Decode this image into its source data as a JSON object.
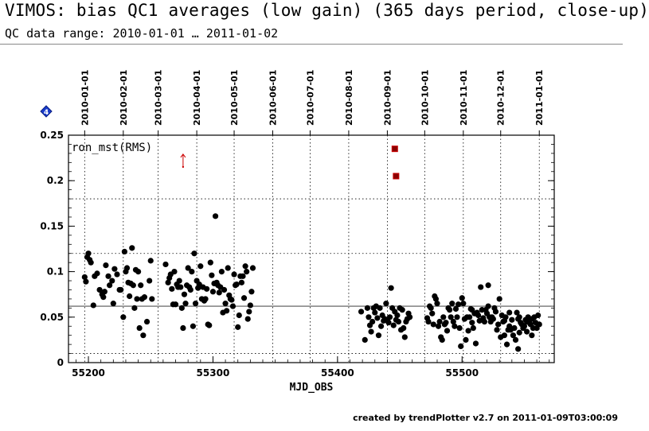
{
  "header": {
    "title": "VIMOS: bias QC1 averages (low gain) (365 days period, close-up)",
    "subtitle": "QC data range: 2010-01-01 … 2011-01-02",
    "footer": "created by trendPlotter v2.7 on 2011-01-09T03:00:09"
  },
  "badge": {
    "icon": "diamond-icon",
    "text": "4",
    "color": "#1a3ccc"
  },
  "colors": {
    "points": "#000000",
    "outlier": "#8b0000",
    "outlier_edge": "#cc0000",
    "arrow": "#cc0000",
    "grid": "#000000"
  },
  "chart_data": {
    "type": "scatter",
    "xlabel": "MJD_OBS",
    "ylabel": "",
    "panel_label": "ron_mst(RMS)",
    "xlim": [
      55184,
      55574
    ],
    "ylim": [
      0,
      0.25
    ],
    "x_ticks": [
      55200,
      55300,
      55400,
      55500
    ],
    "x_tick_labels": [
      "55200",
      "55300",
      "55400",
      "55500"
    ],
    "y_ticks": [
      0,
      0.05,
      0.1,
      0.15,
      0.2,
      0.25
    ],
    "y_tick_labels": [
      "0",
      "0.05",
      "0.1",
      "0.15",
      "0.2",
      "0.25"
    ],
    "horizontal_grid": [
      0.01,
      0.062,
      0.12,
      0.18
    ],
    "reference_line": 0.062,
    "date_ticks": [
      {
        "mjd": 55197,
        "label": "2010-01-01"
      },
      {
        "mjd": 55228,
        "label": "2010-02-01"
      },
      {
        "mjd": 55256,
        "label": "2010-03-01"
      },
      {
        "mjd": 55287,
        "label": "2010-04-01"
      },
      {
        "mjd": 55317,
        "label": "2010-05-01"
      },
      {
        "mjd": 55348,
        "label": "2010-06-01"
      },
      {
        "mjd": 55378,
        "label": "2010-07-01"
      },
      {
        "mjd": 55409,
        "label": "2010-08-01"
      },
      {
        "mjd": 55440,
        "label": "2010-09-01"
      },
      {
        "mjd": 55470,
        "label": "2010-10-01"
      },
      {
        "mjd": 55501,
        "label": "2010-11-01"
      },
      {
        "mjd": 55531,
        "label": "2010-12-01"
      },
      {
        "mjd": 55562,
        "label": "2011-01-01"
      }
    ],
    "outliers": [
      {
        "x": 55446,
        "y": 0.235
      },
      {
        "x": 55447,
        "y": 0.205
      }
    ],
    "upper_arrow": {
      "x": 55276,
      "y": 0.223
    },
    "series": [
      {
        "points": [
          [
            55197,
            0.094
          ],
          [
            55198,
            0.089
          ],
          [
            55199,
            0.116
          ],
          [
            55200,
            0.12
          ],
          [
            55201,
            0.113
          ],
          [
            55202,
            0.11
          ],
          [
            55204,
            0.063
          ],
          [
            55205,
            0.095
          ],
          [
            55207,
            0.098
          ],
          [
            55209,
            0.08
          ],
          [
            55211,
            0.075
          ],
          [
            55212,
            0.072
          ],
          [
            55213,
            0.078
          ],
          [
            55214,
            0.107
          ],
          [
            55216,
            0.095
          ],
          [
            55217,
            0.085
          ],
          [
            55219,
            0.09
          ],
          [
            55220,
            0.065
          ],
          [
            55221,
            0.103
          ],
          [
            55223,
            0.097
          ],
          [
            55225,
            0.08
          ],
          [
            55226,
            0.08
          ],
          [
            55228,
            0.05
          ],
          [
            55229,
            0.122
          ],
          [
            55230,
            0.1
          ],
          [
            55231,
            0.104
          ],
          [
            55232,
            0.088
          ],
          [
            55233,
            0.073
          ],
          [
            55234,
            0.087
          ],
          [
            55235,
            0.126
          ],
          [
            55236,
            0.085
          ],
          [
            55237,
            0.06
          ],
          [
            55238,
            0.102
          ],
          [
            55239,
            0.07
          ],
          [
            55240,
            0.1
          ],
          [
            55241,
            0.038
          ],
          [
            55242,
            0.085
          ],
          [
            55243,
            0.07
          ],
          [
            55244,
            0.03
          ],
          [
            55245,
            0.072
          ],
          [
            55247,
            0.045
          ],
          [
            55249,
            0.09
          ],
          [
            55250,
            0.112
          ],
          [
            55251,
            0.07
          ],
          [
            55262,
            0.108
          ],
          [
            55264,
            0.088
          ],
          [
            55265,
            0.093
          ],
          [
            55266,
            0.097
          ],
          [
            55267,
            0.081
          ],
          [
            55268,
            0.064
          ],
          [
            55269,
            0.1
          ],
          [
            55270,
            0.064
          ],
          [
            55271,
            0.086
          ],
          [
            55272,
            0.083
          ],
          [
            55273,
            0.09
          ],
          [
            55274,
            0.083
          ],
          [
            55275,
            0.06
          ],
          [
            55276,
            0.038
          ],
          [
            55277,
            0.075
          ],
          [
            55278,
            0.065
          ],
          [
            55279,
            0.085
          ],
          [
            55280,
            0.104
          ],
          [
            55281,
            0.083
          ],
          [
            55282,
            0.08
          ],
          [
            55283,
            0.1
          ],
          [
            55284,
            0.04
          ],
          [
            55285,
            0.12
          ],
          [
            55286,
            0.065
          ],
          [
            55287,
            0.09
          ],
          [
            55288,
            0.082
          ],
          [
            55289,
            0.086
          ],
          [
            55290,
            0.106
          ],
          [
            55291,
            0.07
          ],
          [
            55292,
            0.083
          ],
          [
            55293,
            0.068
          ],
          [
            55294,
            0.07
          ],
          [
            55295,
            0.081
          ],
          [
            55296,
            0.042
          ],
          [
            55297,
            0.041
          ],
          [
            55298,
            0.11
          ],
          [
            55299,
            0.096
          ],
          [
            55300,
            0.078
          ],
          [
            55301,
            0.087
          ],
          [
            55302,
            0.161
          ],
          [
            55303,
            0.088
          ],
          [
            55304,
            0.085
          ],
          [
            55305,
            0.077
          ],
          [
            55306,
            0.083
          ],
          [
            55307,
            0.1
          ],
          [
            55308,
            0.055
          ],
          [
            55309,
            0.08
          ],
          [
            55310,
            0.065
          ],
          [
            55311,
            0.057
          ],
          [
            55312,
            0.104
          ],
          [
            55313,
            0.074
          ],
          [
            55314,
            0.07
          ],
          [
            55315,
            0.069
          ],
          [
            55316,
            0.062
          ],
          [
            55317,
            0.097
          ],
          [
            55318,
            0.085
          ],
          [
            55319,
            0.086
          ],
          [
            55320,
            0.039
          ],
          [
            55321,
            0.052
          ],
          [
            55322,
            0.095
          ],
          [
            55323,
            0.088
          ],
          [
            55324,
            0.095
          ],
          [
            55325,
            0.071
          ],
          [
            55326,
            0.106
          ],
          [
            55327,
            0.1
          ],
          [
            55328,
            0.048
          ],
          [
            55329,
            0.056
          ],
          [
            55330,
            0.063
          ],
          [
            55331,
            0.078
          ],
          [
            55332,
            0.104
          ],
          [
            55419,
            0.056
          ],
          [
            55422,
            0.025
          ],
          [
            55424,
            0.06
          ],
          [
            55425,
            0.05
          ],
          [
            55426,
            0.041
          ],
          [
            55427,
            0.034
          ],
          [
            55428,
            0.045
          ],
          [
            55429,
            0.06
          ],
          [
            55430,
            0.055
          ],
          [
            55431,
            0.062
          ],
          [
            55432,
            0.049
          ],
          [
            55433,
            0.03
          ],
          [
            55434,
            0.06
          ],
          [
            55435,
            0.04
          ],
          [
            55436,
            0.052
          ],
          [
            55437,
            0.046
          ],
          [
            55438,
            0.048
          ],
          [
            55439,
            0.065
          ],
          [
            55440,
            0.046
          ],
          [
            55441,
            0.044
          ],
          [
            55442,
            0.05
          ],
          [
            55443,
            0.082
          ],
          [
            55444,
            0.06
          ],
          [
            55445,
            0.041
          ],
          [
            55446,
            0.056
          ],
          [
            55447,
            0.047
          ],
          [
            55448,
            0.052
          ],
          [
            55449,
            0.045
          ],
          [
            55450,
            0.06
          ],
          [
            55451,
            0.036
          ],
          [
            55452,
            0.058
          ],
          [
            55453,
            0.038
          ],
          [
            55454,
            0.028
          ],
          [
            55455,
            0.045
          ],
          [
            55456,
            0.048
          ],
          [
            55457,
            0.054
          ],
          [
            55458,
            0.05
          ],
          [
            55472,
            0.049
          ],
          [
            55473,
            0.045
          ],
          [
            55474,
            0.062
          ],
          [
            55475,
            0.06
          ],
          [
            55476,
            0.054
          ],
          [
            55477,
            0.042
          ],
          [
            55478,
            0.073
          ],
          [
            55479,
            0.07
          ],
          [
            55480,
            0.065
          ],
          [
            55481,
            0.04
          ],
          [
            55482,
            0.045
          ],
          [
            55483,
            0.028
          ],
          [
            55484,
            0.025
          ],
          [
            55485,
            0.05
          ],
          [
            55486,
            0.042
          ],
          [
            55487,
            0.044
          ],
          [
            55488,
            0.035
          ],
          [
            55489,
            0.06
          ],
          [
            55490,
            0.058
          ],
          [
            55491,
            0.05
          ],
          [
            55492,
            0.065
          ],
          [
            55493,
            0.045
          ],
          [
            55494,
            0.04
          ],
          [
            55495,
            0.059
          ],
          [
            55496,
            0.05
          ],
          [
            55497,
            0.064
          ],
          [
            55498,
            0.038
          ],
          [
            55499,
            0.018
          ],
          [
            55500,
            0.071
          ],
          [
            55501,
            0.065
          ],
          [
            55502,
            0.048
          ],
          [
            55503,
            0.025
          ],
          [
            55504,
            0.05
          ],
          [
            55505,
            0.035
          ],
          [
            55506,
            0.05
          ],
          [
            55507,
            0.059
          ],
          [
            55508,
            0.044
          ],
          [
            55509,
            0.038
          ],
          [
            55510,
            0.054
          ],
          [
            55511,
            0.021
          ],
          [
            55512,
            0.055
          ],
          [
            55513,
            0.052
          ],
          [
            55514,
            0.046
          ],
          [
            55515,
            0.083
          ],
          [
            55516,
            0.058
          ],
          [
            55517,
            0.049
          ],
          [
            55518,
            0.045
          ],
          [
            55519,
            0.058
          ],
          [
            55520,
            0.054
          ],
          [
            55521,
            0.085
          ],
          [
            55522,
            0.05
          ],
          [
            55523,
            0.045
          ],
          [
            55524,
            0.05
          ],
          [
            55525,
            0.048
          ],
          [
            55526,
            0.06
          ],
          [
            55527,
            0.056
          ],
          [
            55528,
            0.036
          ],
          [
            55529,
            0.042
          ],
          [
            55530,
            0.07
          ],
          [
            55531,
            0.028
          ],
          [
            55532,
            0.052
          ],
          [
            55533,
            0.045
          ],
          [
            55534,
            0.03
          ],
          [
            55535,
            0.05
          ],
          [
            55536,
            0.02
          ],
          [
            55537,
            0.036
          ],
          [
            55538,
            0.04
          ],
          [
            55539,
            0.036
          ],
          [
            55540,
            0.047
          ],
          [
            55541,
            0.03
          ],
          [
            55542,
            0.038
          ],
          [
            55543,
            0.025
          ],
          [
            55544,
            0.055
          ],
          [
            55545,
            0.048
          ],
          [
            55546,
            0.05
          ],
          [
            55547,
            0.044
          ],
          [
            55548,
            0.042
          ],
          [
            55549,
            0.038
          ],
          [
            55550,
            0.04
          ],
          [
            55551,
            0.047
          ],
          [
            55552,
            0.045
          ],
          [
            55553,
            0.05
          ],
          [
            55554,
            0.044
          ],
          [
            55555,
            0.042
          ],
          [
            55556,
            0.048
          ],
          [
            55557,
            0.038
          ],
          [
            55558,
            0.05
          ],
          [
            55559,
            0.044
          ],
          [
            55560,
            0.038
          ],
          [
            55561,
            0.052
          ],
          [
            55562,
            0.042
          ],
          [
            55538,
            0.055
          ],
          [
            55546,
            0.033
          ],
          [
            55552,
            0.034
          ],
          [
            55556,
            0.03
          ],
          [
            55521,
            0.062
          ],
          [
            55508,
            0.058
          ],
          [
            55545,
            0.015
          ],
          [
            55534,
            0.046
          ]
        ]
      }
    ]
  }
}
